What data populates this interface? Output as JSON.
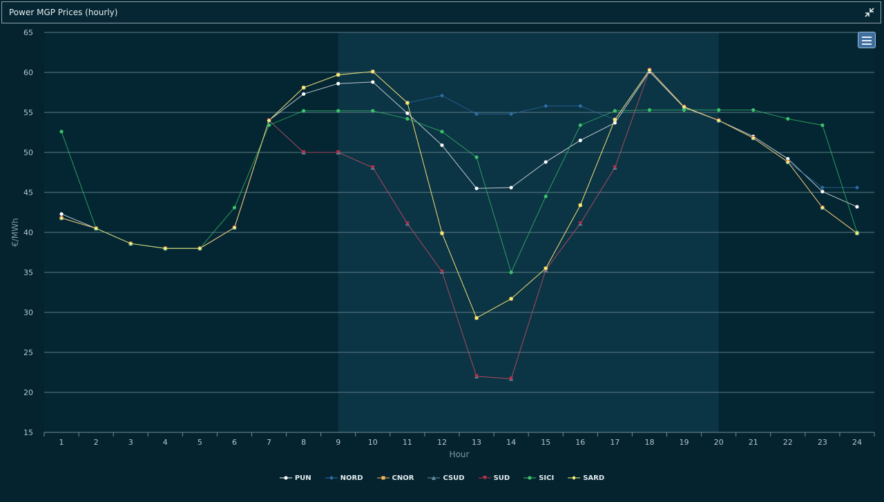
{
  "window": {
    "title": "Power MGP Prices (hourly)"
  },
  "colors": {
    "PUN": "#ffffff",
    "NORD": "#2f6fa8",
    "CNOR": "#f6b65d",
    "CSUD": "#5f8fa0",
    "SUD": "#c0304a",
    "SICI": "#3cc36b",
    "SARD": "#f2ee7a"
  },
  "chart_data": {
    "type": "line",
    "title": "",
    "xlabel": "Hour",
    "ylabel": "€/MWh",
    "ylim": [
      15,
      65
    ],
    "yticks": [
      15,
      20,
      25,
      30,
      35,
      40,
      45,
      50,
      55,
      60,
      65
    ],
    "grid": true,
    "legend_position": "bottom-center",
    "highlighted_range": [
      9,
      20
    ],
    "x": [
      1,
      2,
      3,
      4,
      5,
      6,
      7,
      8,
      9,
      10,
      11,
      12,
      13,
      14,
      15,
      16,
      17,
      18,
      19,
      20,
      21,
      22,
      23,
      24
    ],
    "series": [
      {
        "name": "PUN",
        "marker": "circle",
        "values": [
          42.3,
          40.5,
          38.6,
          38.0,
          38.0,
          40.6,
          54.0,
          57.3,
          58.6,
          58.8,
          54.9,
          50.9,
          45.5,
          45.6,
          48.8,
          51.5,
          53.7,
          60.1,
          55.6,
          54.0,
          52.0,
          49.2,
          45.1,
          43.2
        ]
      },
      {
        "name": "NORD",
        "marker": "diamond",
        "values": [
          41.8,
          40.5,
          38.6,
          38.0,
          38.0,
          40.6,
          54.0,
          58.1,
          59.7,
          60.1,
          56.2,
          57.1,
          54.8,
          54.8,
          55.8,
          55.8,
          54.1,
          60.3,
          55.7,
          54.0,
          51.8,
          48.8,
          45.6,
          45.6
        ]
      },
      {
        "name": "CNOR",
        "marker": "square",
        "values": [
          41.8,
          40.5,
          38.6,
          38.0,
          38.0,
          40.6,
          54.0,
          58.1,
          59.7,
          60.1,
          56.2,
          39.9,
          29.3,
          31.7,
          35.5,
          43.4,
          54.1,
          60.3,
          55.7,
          54.0,
          51.8,
          48.8,
          43.1,
          39.9
        ]
      },
      {
        "name": "CSUD",
        "marker": "triangle",
        "values": [
          41.8,
          40.5,
          38.6,
          38.0,
          38.0,
          40.6,
          54.0,
          50.0,
          50.0,
          48.1,
          41.1,
          35.1,
          22.0,
          21.7,
          35.3,
          41.1,
          48.1,
          60.3,
          55.7,
          54.0,
          51.8,
          48.8,
          43.1,
          39.9
        ]
      },
      {
        "name": "SUD",
        "marker": "triangle-down",
        "values": [
          41.8,
          40.5,
          38.6,
          38.0,
          38.0,
          40.6,
          54.0,
          50.0,
          50.0,
          48.1,
          41.1,
          35.1,
          22.0,
          21.7,
          35.3,
          41.1,
          48.1,
          60.3,
          55.7,
          54.0,
          51.8,
          48.8,
          43.1,
          39.9
        ]
      },
      {
        "name": "SICI",
        "marker": "circle",
        "values": [
          52.6,
          40.5,
          38.6,
          38.0,
          38.0,
          43.1,
          53.4,
          55.2,
          55.2,
          55.2,
          54.2,
          52.6,
          49.4,
          35.0,
          44.5,
          53.4,
          55.2,
          55.3,
          55.3,
          55.3,
          55.3,
          54.2,
          53.4,
          40.0
        ]
      },
      {
        "name": "SARD",
        "marker": "diamond",
        "values": [
          41.8,
          40.5,
          38.6,
          38.0,
          38.0,
          40.6,
          54.0,
          58.1,
          59.7,
          60.1,
          56.2,
          39.9,
          29.3,
          31.7,
          35.5,
          43.4,
          54.1,
          60.3,
          55.7,
          54.0,
          51.8,
          48.8,
          43.1,
          39.9
        ]
      }
    ]
  }
}
